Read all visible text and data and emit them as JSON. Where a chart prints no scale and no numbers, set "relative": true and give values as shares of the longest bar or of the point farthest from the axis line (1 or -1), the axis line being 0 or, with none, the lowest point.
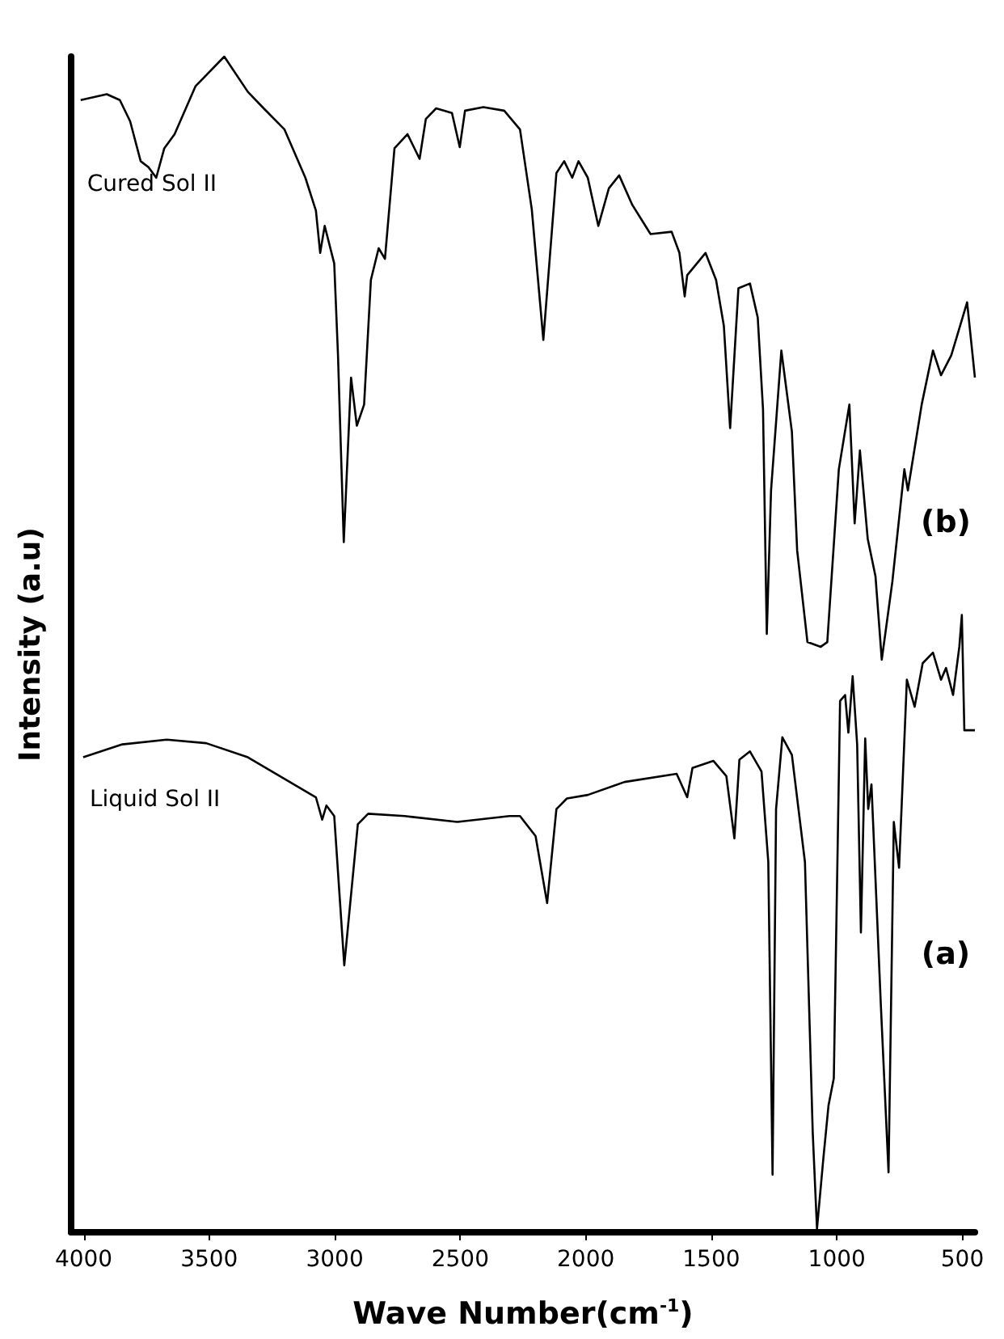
{
  "chart_data": {
    "type": "line",
    "xlabel": "Wave Number(cm$^{-1}$)",
    "ylabel": "Intensity (a.u)",
    "relative": true,
    "tick_labels": "x",
    "marker": "none",
    "line_style": "solid",
    "xlim": [
      4050,
      450
    ],
    "xticks": [
      4000,
      3500,
      3000,
      2500,
      2000,
      1500,
      1000,
      500
    ],
    "annotations": [
      "(b)",
      "(a)"
    ],
    "series": [
      {
        "name": "Cured Sol II",
        "color": "#000000",
        "x": [
          4012,
          3908,
          3856,
          3815,
          3773,
          3742,
          3711,
          3679,
          3638,
          3554,
          3440,
          3346,
          3283,
          3200,
          3117,
          3075,
          3058,
          3040,
          3002,
          2987,
          2964,
          2935,
          2912,
          2883,
          2856,
          2825,
          2800,
          2762,
          2710,
          2662,
          2637,
          2596,
          2533,
          2502,
          2481,
          2408,
          2325,
          2262,
          2215,
          2169,
          2117,
          2086,
          2054,
          2029,
          1992,
          1950,
          1908,
          1867,
          1815,
          1742,
          1658,
          1627,
          1606,
          1596,
          1523,
          1481,
          1450,
          1425,
          1392,
          1346,
          1315,
          1294,
          1279,
          1262,
          1221,
          1179,
          1158,
          1117,
          1064,
          1038,
          992,
          950,
          929,
          908,
          877,
          846,
          821,
          779,
          731,
          717,
          662,
          617,
          585,
          544,
          481,
          450
        ],
        "values": [
          0.963,
          0.968,
          0.963,
          0.945,
          0.911,
          0.906,
          0.897,
          0.922,
          0.934,
          0.975,
          1.0,
          0.97,
          0.956,
          0.938,
          0.897,
          0.869,
          0.833,
          0.856,
          0.824,
          0.746,
          0.587,
          0.727,
          0.686,
          0.704,
          0.81,
          0.837,
          0.828,
          0.922,
          0.934,
          0.913,
          0.947,
          0.956,
          0.952,
          0.923,
          0.954,
          0.957,
          0.954,
          0.938,
          0.87,
          0.759,
          0.901,
          0.911,
          0.897,
          0.911,
          0.897,
          0.856,
          0.888,
          0.899,
          0.874,
          0.849,
          0.851,
          0.833,
          0.796,
          0.814,
          0.833,
          0.81,
          0.771,
          0.684,
          0.803,
          0.807,
          0.778,
          0.7,
          0.509,
          0.631,
          0.75,
          0.681,
          0.58,
          0.502,
          0.498,
          0.502,
          0.649,
          0.704,
          0.603,
          0.665,
          0.59,
          0.558,
          0.487,
          0.553,
          0.649,
          0.631,
          0.704,
          0.75,
          0.729,
          0.746,
          0.791,
          0.727
        ]
      },
      {
        "name": "Liquid Sol II",
        "color": "#000000",
        "x": [
          4002,
          3846,
          3669,
          3512,
          3346,
          3179,
          3075,
          3050,
          3033,
          3002,
          2962,
          2908,
          2867,
          2721,
          2512,
          2304,
          2262,
          2200,
          2154,
          2117,
          2075,
          1992,
          1846,
          1638,
          1596,
          1575,
          1492,
          1440,
          1408,
          1388,
          1346,
          1300,
          1273,
          1256,
          1242,
          1217,
          1179,
          1127,
          1096,
          1079,
          1054,
          1033,
          1012,
          987,
          967,
          954,
          937,
          919,
          904,
          887,
          875,
          862,
          825,
          794,
          773,
          752,
          721,
          690,
          658,
          617,
          585,
          565,
          537,
          512,
          502,
          492,
          450
        ],
        "values": [
          0.404,
          0.415,
          0.419,
          0.416,
          0.404,
          0.383,
          0.37,
          0.351,
          0.363,
          0.354,
          0.227,
          0.347,
          0.356,
          0.354,
          0.349,
          0.354,
          0.354,
          0.337,
          0.28,
          0.36,
          0.369,
          0.372,
          0.383,
          0.39,
          0.37,
          0.395,
          0.401,
          0.388,
          0.335,
          0.402,
          0.409,
          0.392,
          0.315,
          0.049,
          0.36,
          0.421,
          0.406,
          0.315,
          0.085,
          0.003,
          0.062,
          0.108,
          0.131,
          0.452,
          0.457,
          0.425,
          0.473,
          0.415,
          0.255,
          0.42,
          0.36,
          0.381,
          0.195,
          0.051,
          0.349,
          0.31,
          0.47,
          0.447,
          0.484,
          0.493,
          0.47,
          0.48,
          0.457,
          0.498,
          0.525,
          0.427,
          0.427
        ]
      }
    ]
  }
}
